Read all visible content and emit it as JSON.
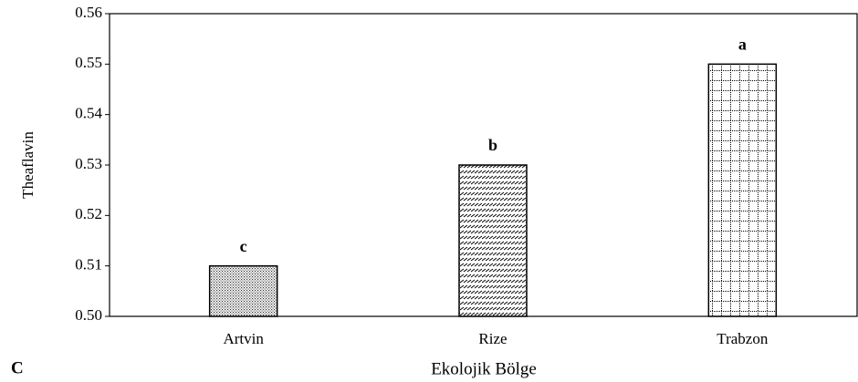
{
  "chart_data": {
    "type": "bar",
    "panel_label": "C",
    "ylabel": "Theaflavin",
    "xlabel": "Ekolojik Bölge",
    "categories": [
      "Artvin",
      "Rize",
      "Trabzon"
    ],
    "values": [
      0.51,
      0.53,
      0.55
    ],
    "annotations": [
      "c",
      "b",
      "a"
    ],
    "patterns": [
      "dots",
      "dashes",
      "grid"
    ],
    "color": "#000000",
    "ylim": [
      0.5,
      0.56
    ],
    "yticks": [
      {
        "value": 0.5,
        "label": "0.50"
      },
      0.51,
      0.52,
      0.53,
      0.54,
      0.55,
      0.56
    ],
    "grid": false
  }
}
